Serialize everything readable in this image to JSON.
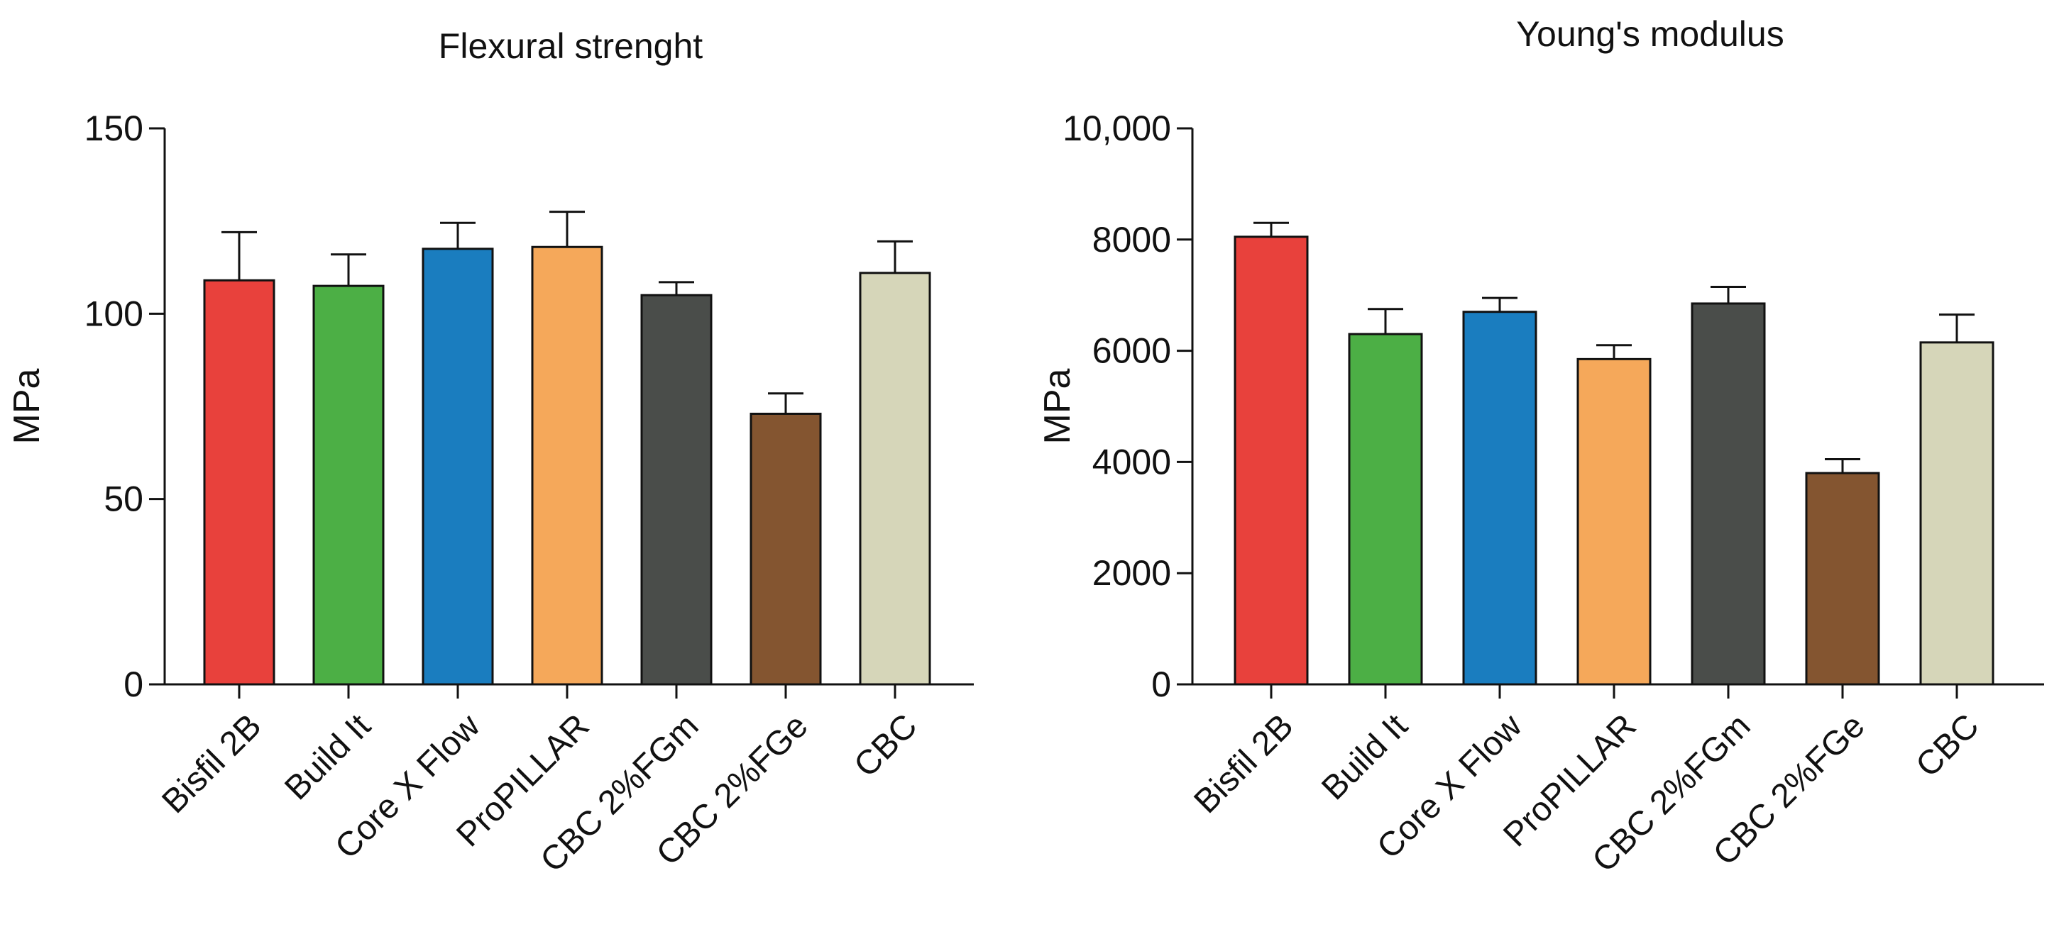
{
  "chart_data": [
    {
      "type": "bar",
      "title": "Flexural strenght",
      "ylabel": "MPa",
      "xlabel": "",
      "ylim": [
        0,
        150
      ],
      "yticks": [
        0,
        50,
        100,
        150
      ],
      "ytick_labels": [
        "0",
        "50",
        "100",
        "150"
      ],
      "categories": [
        "Bisfil 2B",
        "Build It",
        "Core X Flow",
        "ProPILLAR",
        "CBC 2%FGm",
        "CBC 2%FGe",
        "CBC"
      ],
      "values": [
        109,
        107.5,
        117.5,
        118,
        105,
        73,
        111
      ],
      "error_plus": [
        13,
        8.5,
        7,
        9.5,
        3.5,
        5.5,
        8.5
      ],
      "colors": [
        "#e8413c",
        "#4caf45",
        "#1a7dbf",
        "#f5a85a",
        "#4a4d4a",
        "#845530",
        "#d6d6b9"
      ],
      "grid": false,
      "legend": "none"
    },
    {
      "type": "bar",
      "title": "Young's modulus",
      "ylabel": "MPa",
      "xlabel": "",
      "ylim": [
        0,
        10000
      ],
      "yticks": [
        0,
        2000,
        4000,
        6000,
        8000,
        10000
      ],
      "ytick_labels": [
        "0",
        "2000",
        "4000",
        "6000",
        "8000",
        "10,000"
      ],
      "categories": [
        "Bisfil 2B",
        "Build It",
        "Core X Flow",
        "ProPILLAR",
        "CBC 2%FGm",
        "CBC 2%FGe",
        "CBC"
      ],
      "values": [
        8050,
        6300,
        6700,
        5850,
        6850,
        3800,
        6150
      ],
      "error_plus": [
        250,
        450,
        250,
        250,
        300,
        250,
        500
      ],
      "colors": [
        "#e8413c",
        "#4caf45",
        "#1a7dbf",
        "#f5a85a",
        "#4a4d4a",
        "#845530",
        "#d6d6b9"
      ],
      "grid": false,
      "legend": "none"
    }
  ]
}
